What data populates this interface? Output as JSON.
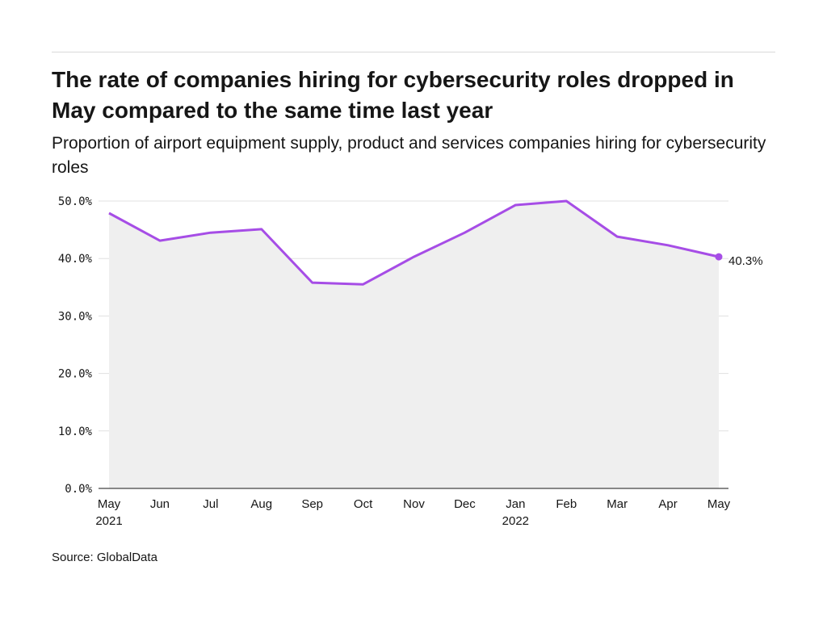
{
  "header": {
    "title": "The rate of companies hiring for cybersecurity roles dropped in May compared to the same time last year",
    "subtitle": "Proportion of airport equipment supply, product and services companies hiring for cybersecurity roles"
  },
  "footer": {
    "source": "Source: GlobalData"
  },
  "colors": {
    "line": "#a64de6",
    "area": "#efefef",
    "grid": "#e0e0e0",
    "axis": "#161616"
  },
  "chart_data": {
    "type": "area",
    "title": "The rate of companies hiring for cybersecurity roles dropped in May compared to the same time last year",
    "subtitle": "Proportion of airport equipment supply, product and services companies hiring for cybersecurity roles",
    "xlabel": "",
    "ylabel": "",
    "ylim": [
      0,
      50
    ],
    "yticks": [
      0,
      10,
      20,
      30,
      40,
      50
    ],
    "ytick_labels": [
      "0.0%",
      "10.0%",
      "20.0%",
      "30.0%",
      "40.0%",
      "50.0%"
    ],
    "categories": [
      "May",
      "Jun",
      "Jul",
      "Aug",
      "Sep",
      "Oct",
      "Nov",
      "Dec",
      "Jan",
      "Feb",
      "Mar",
      "Apr",
      "May"
    ],
    "category_sublabels": [
      "2021",
      "",
      "",
      "",
      "",
      "",
      "",
      "",
      "2022",
      "",
      "",
      "",
      ""
    ],
    "series": [
      {
        "values": [
          47.9,
          43.1,
          44.5,
          45.1,
          35.8,
          35.5,
          40.3,
          44.5,
          49.3,
          50.0,
          43.8,
          42.3,
          40.3
        ]
      }
    ],
    "end_label": "40.3%",
    "grid": true,
    "legend": "none"
  }
}
